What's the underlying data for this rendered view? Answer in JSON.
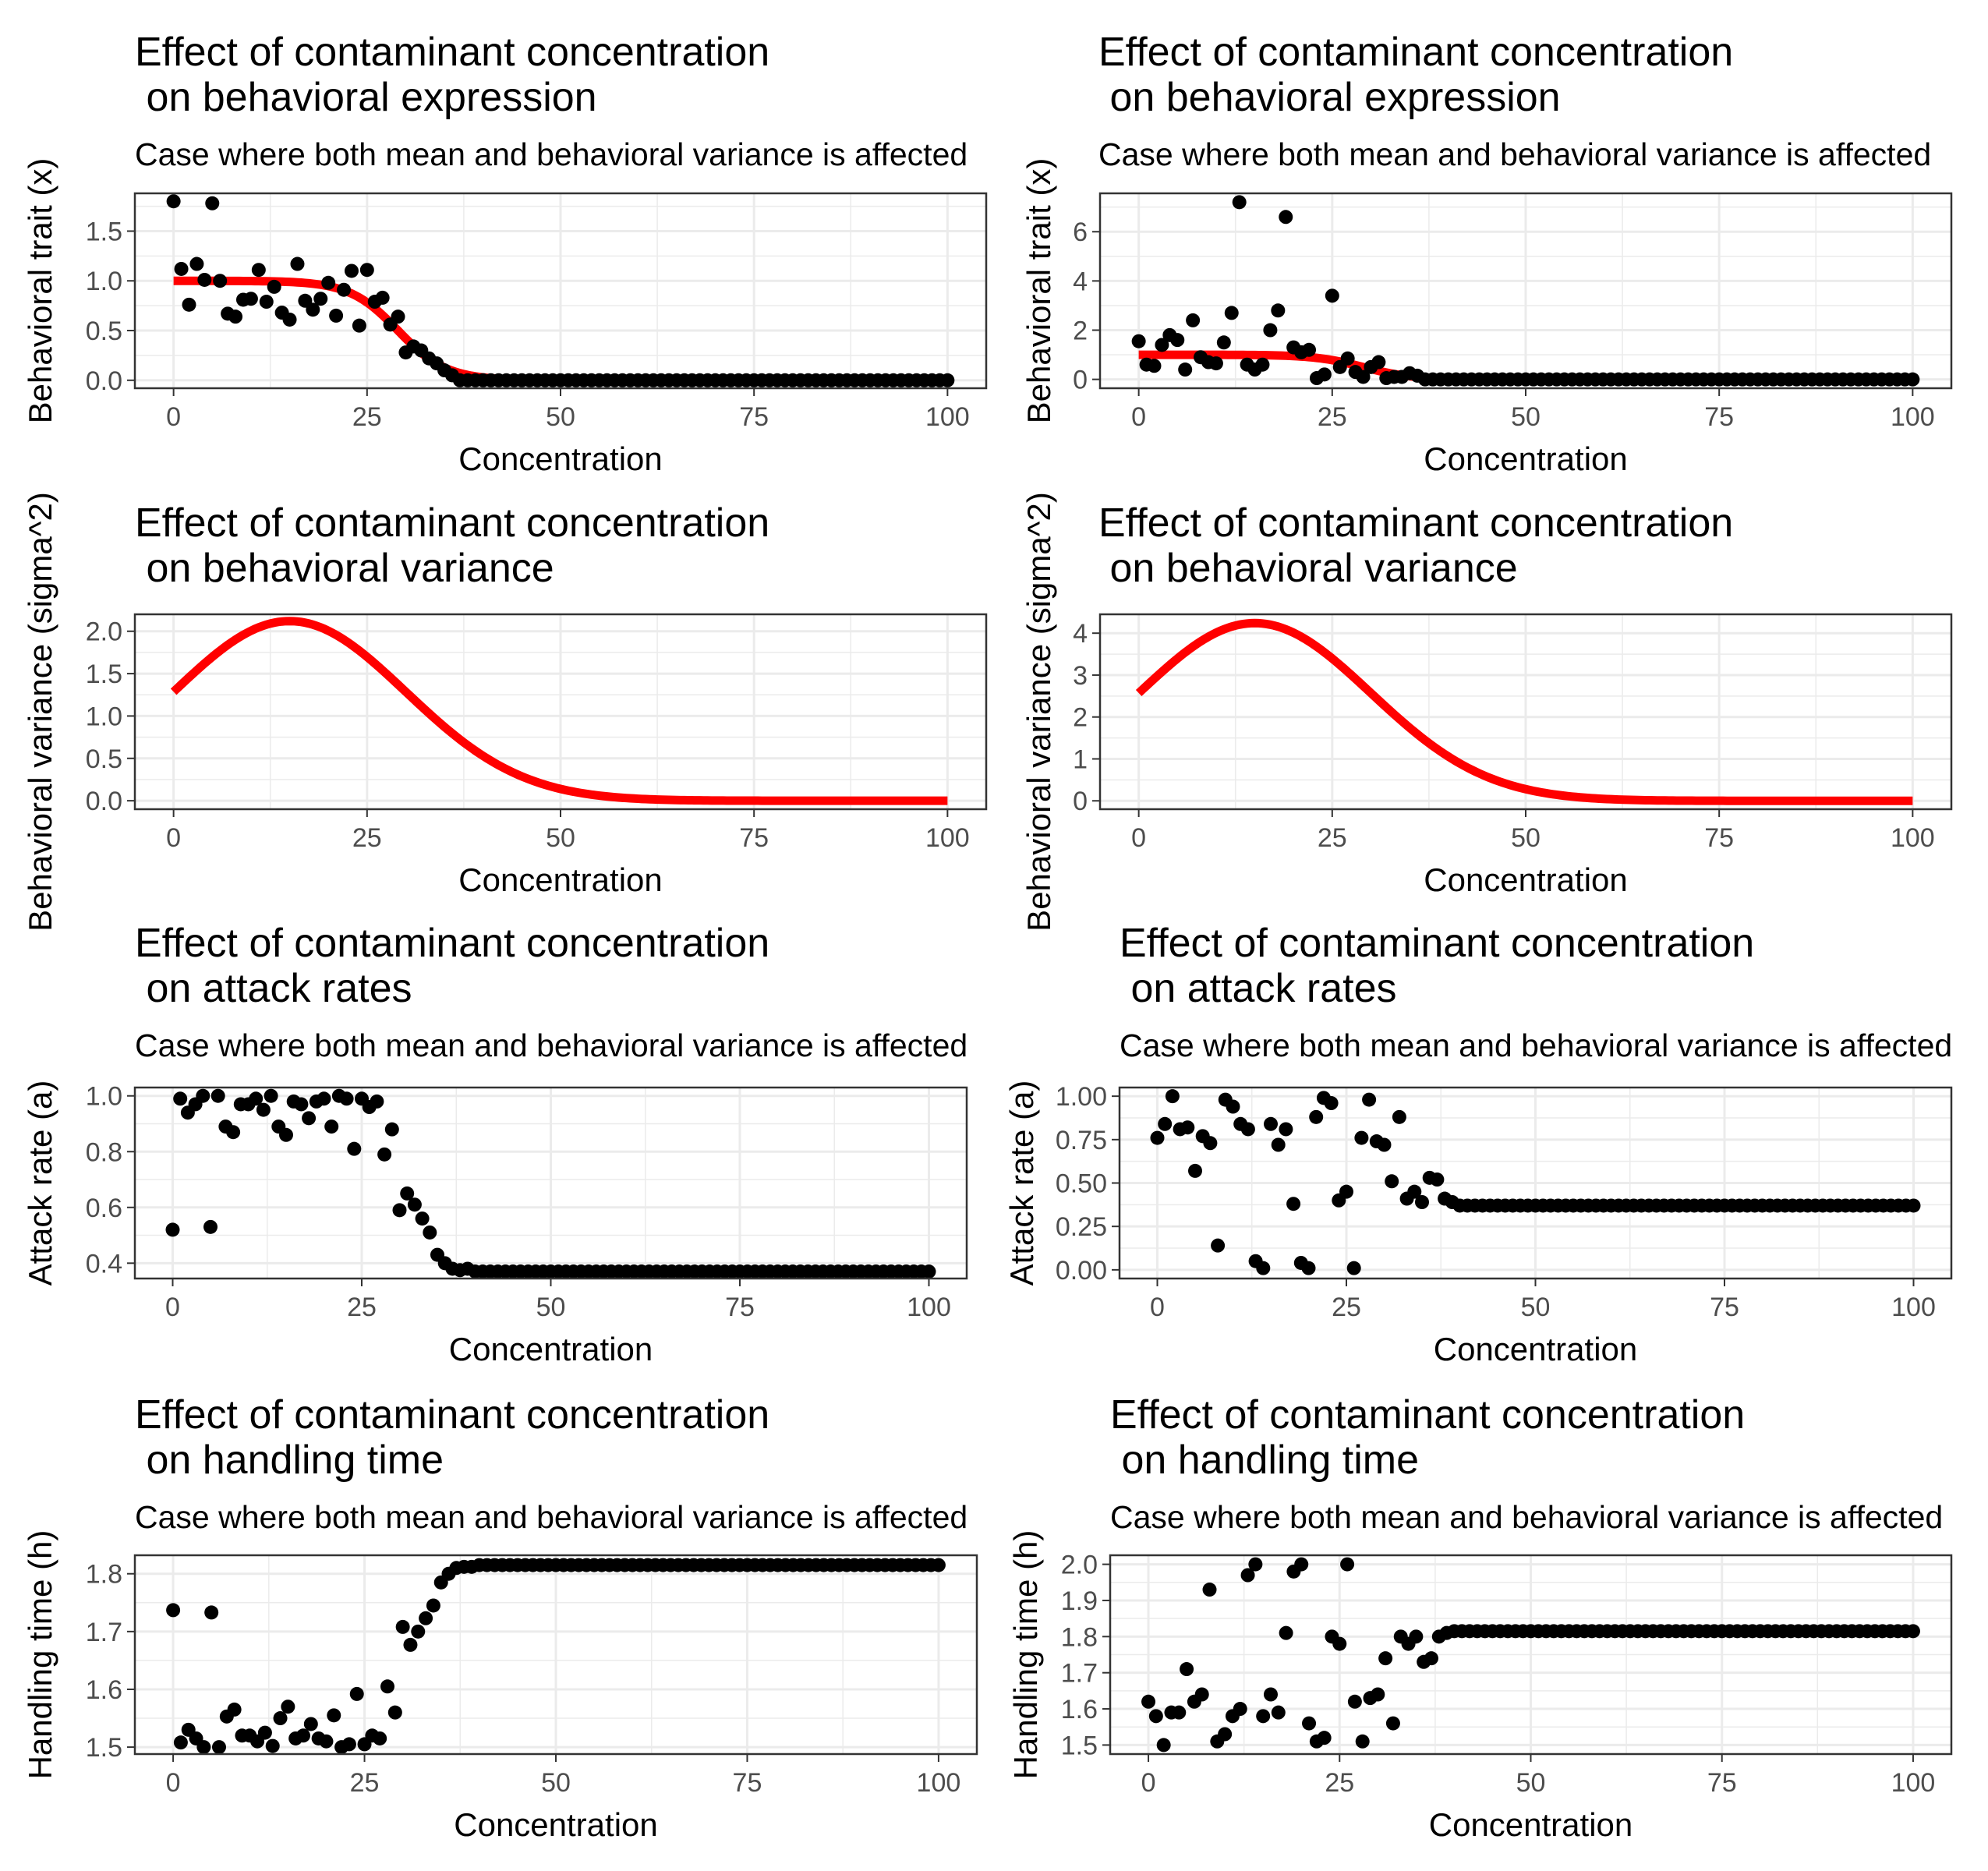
{
  "figure": {
    "colors": {
      "points": "#000000",
      "curve": "#ff0000",
      "panel_border": "#333333",
      "grid": "#ebebeb",
      "background": "#ffffff"
    }
  },
  "chart_data": [
    {
      "id": "expr-left",
      "type": "scatter",
      "title": "Effect of contaminant concentration\n on behavioral expression",
      "subtitle": "Case where both mean and behavioral variance is affected",
      "xlabel": "Concentration",
      "ylabel": "Behavioral trait (x)",
      "xlim": [
        -5,
        105
      ],
      "ylim": [
        -0.08,
        1.88
      ],
      "xticks": [
        0,
        25,
        50,
        75,
        100
      ],
      "xtick_labels": [
        "0",
        "25",
        "50",
        "75",
        "100"
      ],
      "yticks": [
        0,
        0.5,
        1,
        1.5
      ],
      "ytick_labels": [
        "0.0",
        "0.5",
        "1.0",
        "1.5"
      ],
      "grid": true,
      "legend": "none",
      "series": [
        {
          "kind": "points",
          "x": [
            0,
            1,
            2,
            3,
            4,
            5,
            6,
            7,
            8,
            9,
            10,
            11,
            12,
            13,
            14,
            15,
            16,
            17,
            18,
            19,
            20,
            21,
            22,
            23,
            24,
            25,
            26,
            27,
            28,
            29,
            30,
            31,
            32,
            33,
            34,
            35,
            36
          ],
          "y": [
            1.8,
            1.12,
            0.76,
            1.17,
            1.01,
            1.78,
            1.0,
            0.67,
            0.64,
            0.81,
            0.82,
            1.11,
            0.79,
            0.94,
            0.68,
            0.61,
            1.17,
            0.8,
            0.71,
            0.82,
            0.98,
            0.65,
            0.91,
            1.1,
            0.55,
            1.11,
            0.79,
            0.83,
            0.56,
            0.64,
            0.28,
            0.34,
            0.3,
            0.22,
            0.17,
            0.1,
            0.05
          ]
        },
        {
          "kind": "points",
          "x_start": 37,
          "x_end": 100,
          "x_step": 1,
          "y_const": 0.0
        },
        {
          "kind": "curve",
          "function": "logistic",
          "params": {
            "L": 1.0,
            "x0": 29,
            "k": 0.32
          },
          "x_range": [
            0,
            100
          ]
        }
      ]
    },
    {
      "id": "expr-right",
      "type": "scatter",
      "title": "Effect of contaminant concentration\n on behavioral expression",
      "subtitle": "Case where both mean and behavioral variance is affected",
      "xlabel": "Concentration",
      "ylabel": "Behavioral trait (x)",
      "xlim": [
        -5,
        105
      ],
      "ylim": [
        -0.36,
        7.56
      ],
      "xticks": [
        0,
        25,
        50,
        75,
        100
      ],
      "xtick_labels": [
        "0",
        "25",
        "50",
        "75",
        "100"
      ],
      "yticks": [
        0,
        2,
        4,
        6
      ],
      "ytick_labels": [
        "0",
        "2",
        "4",
        "6"
      ],
      "grid": true,
      "legend": "none",
      "series": [
        {
          "kind": "points",
          "x": [
            0,
            1,
            2,
            3,
            4,
            5,
            6,
            7,
            8,
            9,
            10,
            11,
            12,
            13,
            14,
            15,
            16,
            17,
            18,
            19,
            20,
            21,
            22,
            23,
            24,
            25,
            26,
            27,
            28,
            29,
            30,
            31,
            32,
            33,
            34,
            35,
            36
          ],
          "y": [
            1.55,
            0.6,
            0.55,
            1.4,
            1.8,
            1.6,
            0.4,
            2.4,
            0.9,
            0.7,
            0.65,
            1.5,
            2.7,
            7.2,
            0.6,
            0.4,
            0.6,
            2.0,
            2.8,
            6.6,
            1.3,
            1.1,
            1.2,
            0.05,
            0.2,
            3.4,
            0.5,
            0.85,
            0.3,
            0.1,
            0.5,
            0.7,
            0.05,
            0.1,
            0.1,
            0.25,
            0.15
          ]
        },
        {
          "kind": "points",
          "x_start": 37,
          "x_end": 100,
          "x_step": 1,
          "y_const": 0.0
        },
        {
          "kind": "curve",
          "function": "logistic",
          "params": {
            "L": 1.0,
            "x0": 29,
            "k": 0.32
          },
          "x_range": [
            0,
            100
          ]
        }
      ]
    },
    {
      "id": "var-left",
      "type": "line",
      "title": "Effect of contaminant concentration\n on behavioral variance",
      "subtitle": "",
      "xlabel": "Concentration",
      "ylabel": "Behavioral variance (sigma^2)",
      "xlim": [
        -5,
        105
      ],
      "ylim": [
        -0.1,
        2.2
      ],
      "xticks": [
        0,
        25,
        50,
        75,
        100
      ],
      "xtick_labels": [
        "0",
        "25",
        "50",
        "75",
        "100"
      ],
      "yticks": [
        0,
        0.5,
        1,
        1.5,
        2
      ],
      "ytick_labels": [
        "0.0",
        "0.5",
        "1.0",
        "1.5",
        "2.0"
      ],
      "grid": true,
      "legend": "none",
      "series": [
        {
          "kind": "curve",
          "function": "gaussian",
          "params": {
            "A": 2.12,
            "mu": 15,
            "sigma": 15
          },
          "x_range": [
            0,
            100
          ]
        }
      ]
    },
    {
      "id": "var-right",
      "type": "line",
      "title": "Effect of contaminant concentration\n on behavioral variance",
      "subtitle": "",
      "xlabel": "Concentration",
      "ylabel": "Behavioral variance (sigma^2)",
      "xlim": [
        -5,
        105
      ],
      "ylim": [
        -0.2,
        4.45
      ],
      "xticks": [
        0,
        25,
        50,
        75,
        100
      ],
      "xtick_labels": [
        "0",
        "25",
        "50",
        "75",
        "100"
      ],
      "yticks": [
        0,
        1,
        2,
        3,
        4
      ],
      "ytick_labels": [
        "0",
        "1",
        "2",
        "3",
        "4"
      ],
      "grid": true,
      "legend": "none",
      "series": [
        {
          "kind": "curve",
          "function": "gaussian",
          "params": {
            "A": 4.24,
            "mu": 15,
            "sigma": 15
          },
          "x_range": [
            0,
            100
          ]
        }
      ]
    },
    {
      "id": "attack-left",
      "type": "scatter",
      "title": "Effect of contaminant concentration\n on attack rates",
      "subtitle": "Case where both mean and behavioral variance is affected",
      "xlabel": "Concentration",
      "ylabel": "Attack rate (a)",
      "xlim": [
        -5,
        105
      ],
      "ylim": [
        0.345,
        1.03
      ],
      "xticks": [
        0,
        25,
        50,
        75,
        100
      ],
      "xtick_labels": [
        "0",
        "25",
        "50",
        "75",
        "100"
      ],
      "yticks": [
        0.4,
        0.6,
        0.8,
        1.0
      ],
      "ytick_labels": [
        "0.4",
        "0.6",
        "0.8",
        "1.0"
      ],
      "grid": true,
      "legend": "none",
      "series": [
        {
          "kind": "points",
          "x": [
            0,
            1,
            2,
            3,
            4,
            5,
            6,
            7,
            8,
            9,
            10,
            11,
            12,
            13,
            14,
            15,
            16,
            17,
            18,
            19,
            20,
            21,
            22,
            23,
            24,
            25,
            26,
            27,
            28,
            29,
            30,
            31,
            32,
            33,
            34,
            35,
            36,
            37,
            38,
            39
          ],
          "y": [
            0.52,
            0.99,
            0.94,
            0.97,
            1.0,
            0.53,
            1.0,
            0.89,
            0.87,
            0.97,
            0.97,
            0.99,
            0.95,
            1.0,
            0.89,
            0.86,
            0.98,
            0.97,
            0.92,
            0.98,
            0.99,
            0.89,
            1.0,
            0.99,
            0.81,
            0.99,
            0.96,
            0.98,
            0.79,
            0.88,
            0.59,
            0.65,
            0.61,
            0.56,
            0.51,
            0.43,
            0.4,
            0.38,
            0.375,
            0.38
          ]
        },
        {
          "kind": "points",
          "x_start": 40,
          "x_end": 100,
          "x_step": 1,
          "y_const": 0.37
        }
      ]
    },
    {
      "id": "attack-right",
      "type": "scatter",
      "title": "Effect of contaminant concentration\n on attack rates",
      "subtitle": "Case where both mean and behavioral variance is affected",
      "xlabel": "Concentration",
      "ylabel": "Attack rate (a)",
      "xlim": [
        -5,
        105
      ],
      "ylim": [
        -0.05,
        1.05
      ],
      "xticks": [
        0,
        25,
        50,
        75,
        100
      ],
      "xtick_labels": [
        "0",
        "25",
        "50",
        "75",
        "100"
      ],
      "yticks": [
        0,
        0.25,
        0.5,
        0.75,
        1.0
      ],
      "ytick_labels": [
        "0.00",
        "0.25",
        "0.50",
        "0.75",
        "1.00"
      ],
      "grid": true,
      "legend": "none",
      "series": [
        {
          "kind": "points",
          "x": [
            0,
            1,
            2,
            3,
            4,
            5,
            6,
            7,
            8,
            9,
            10,
            11,
            12,
            13,
            14,
            15,
            16,
            17,
            18,
            19,
            20,
            21,
            22,
            23,
            24,
            25,
            26,
            27,
            28,
            29,
            30,
            31,
            32,
            33,
            34,
            35,
            36,
            37,
            38,
            39
          ],
          "y": [
            0.76,
            0.84,
            1.0,
            0.81,
            0.82,
            0.57,
            0.77,
            0.73,
            0.14,
            0.98,
            0.94,
            0.84,
            0.81,
            0.05,
            0.01,
            0.84,
            0.72,
            0.81,
            0.38,
            0.04,
            0.01,
            0.88,
            0.99,
            0.96,
            0.4,
            0.45,
            0.01,
            0.76,
            0.98,
            0.74,
            0.72,
            0.51,
            0.88,
            0.41,
            0.45,
            0.39,
            0.53,
            0.52,
            0.41,
            0.39
          ]
        },
        {
          "kind": "points",
          "x_start": 40,
          "x_end": 100,
          "x_step": 1,
          "y_const": 0.37
        }
      ]
    },
    {
      "id": "handling-left",
      "type": "scatter",
      "title": "Effect of contaminant concentration\n on handling time",
      "subtitle": "Case where both mean and behavioral variance is affected",
      "xlabel": "Concentration",
      "ylabel": "Handling time (h)",
      "xlim": [
        -5,
        105
      ],
      "ylim": [
        1.488,
        1.832
      ],
      "xticks": [
        0,
        25,
        50,
        75,
        100
      ],
      "xtick_labels": [
        "0",
        "25",
        "50",
        "75",
        "100"
      ],
      "yticks": [
        1.5,
        1.6,
        1.7,
        1.8
      ],
      "ytick_labels": [
        "1.5",
        "1.6",
        "1.7",
        "1.8"
      ],
      "grid": true,
      "legend": "none",
      "series": [
        {
          "kind": "points",
          "x": [
            0,
            1,
            2,
            3,
            4,
            5,
            6,
            7,
            8,
            9,
            10,
            11,
            12,
            13,
            14,
            15,
            16,
            17,
            18,
            19,
            20,
            21,
            22,
            23,
            24,
            25,
            26,
            27,
            28,
            29,
            30,
            31,
            32,
            33,
            34,
            35,
            36,
            37,
            38,
            39
          ],
          "y": [
            1.737,
            1.508,
            1.53,
            1.515,
            1.5,
            1.733,
            1.5,
            1.553,
            1.565,
            1.52,
            1.52,
            1.51,
            1.525,
            1.502,
            1.55,
            1.57,
            1.515,
            1.52,
            1.54,
            1.515,
            1.51,
            1.555,
            1.5,
            1.505,
            1.592,
            1.505,
            1.52,
            1.515,
            1.605,
            1.56,
            1.708,
            1.677,
            1.7,
            1.723,
            1.745,
            1.785,
            1.8,
            1.81,
            1.812,
            1.812
          ]
        },
        {
          "kind": "points",
          "x_start": 40,
          "x_end": 100,
          "x_step": 1,
          "y_const": 1.815
        }
      ]
    },
    {
      "id": "handling-right",
      "type": "scatter",
      "title": "Effect of contaminant concentration\n on handling time",
      "subtitle": "Case where both mean and behavioral variance is affected",
      "xlabel": "Concentration",
      "ylabel": "Handling time (h)",
      "xlim": [
        -5,
        105
      ],
      "ylim": [
        1.475,
        2.025
      ],
      "xticks": [
        0,
        25,
        50,
        75,
        100
      ],
      "xtick_labels": [
        "0",
        "25",
        "50",
        "75",
        "100"
      ],
      "yticks": [
        1.5,
        1.6,
        1.7,
        1.8,
        1.9,
        2.0
      ],
      "ytick_labels": [
        "1.5",
        "1.6",
        "1.7",
        "1.8",
        "1.9",
        "2.0"
      ],
      "grid": true,
      "legend": "none",
      "series": [
        {
          "kind": "points",
          "x": [
            0,
            1,
            2,
            3,
            4,
            5,
            6,
            7,
            8,
            9,
            10,
            11,
            12,
            13,
            14,
            15,
            16,
            17,
            18,
            19,
            20,
            21,
            22,
            23,
            24,
            25,
            26,
            27,
            28,
            29,
            30,
            31,
            32,
            33,
            34,
            35,
            36,
            37,
            38,
            39
          ],
          "y": [
            1.62,
            1.58,
            1.5,
            1.59,
            1.59,
            1.71,
            1.62,
            1.64,
            1.93,
            1.51,
            1.53,
            1.58,
            1.6,
            1.97,
            2.0,
            1.58,
            1.64,
            1.59,
            1.81,
            1.98,
            2.0,
            1.56,
            1.51,
            1.52,
            1.8,
            1.78,
            2.0,
            1.62,
            1.51,
            1.63,
            1.64,
            1.74,
            1.56,
            1.8,
            1.78,
            1.8,
            1.73,
            1.74,
            1.8,
            1.81
          ]
        },
        {
          "kind": "points",
          "x_start": 40,
          "x_end": 100,
          "x_step": 1,
          "y_const": 1.815
        }
      ]
    }
  ]
}
